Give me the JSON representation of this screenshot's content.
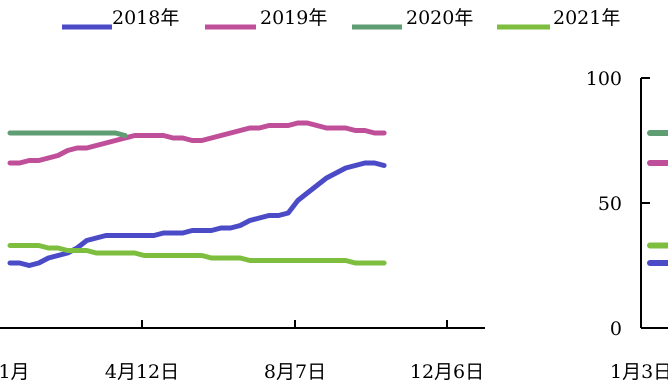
{
  "chart_data": [
    {
      "type": "line",
      "title": "",
      "legend": {
        "position": "top",
        "items": [
          {
            "label": "2018年",
            "color": "#4B4BC8"
          },
          {
            "label": "2019年",
            "color": "#C04F9A"
          },
          {
            "label": "2020年",
            "color": "#5E9E72"
          },
          {
            "label": "2021年",
            "color": "#7DBE3F"
          }
        ]
      },
      "x_ticks": [
        "1月",
        "4月12日",
        "8月7日",
        "12月6日"
      ],
      "ylim": [
        0,
        100
      ],
      "grid": false,
      "x": [
        0,
        1,
        2,
        3,
        4,
        5,
        6,
        7,
        8,
        9,
        10,
        11,
        12,
        13,
        14,
        15,
        16,
        17,
        18,
        19,
        20,
        21,
        22,
        23,
        24,
        25,
        26,
        27,
        28,
        29,
        30,
        31,
        32,
        33,
        34,
        35,
        36,
        37,
        38,
        39,
        40,
        41,
        42,
        43,
        44,
        45,
        46,
        47,
        48,
        49
      ],
      "series": [
        {
          "name": "2018年",
          "color": "#4B4BC8",
          "values": [
            26,
            26,
            25,
            26,
            28,
            29,
            30,
            32,
            35,
            36,
            37,
            37,
            37,
            37,
            37,
            37,
            38,
            38,
            38,
            39,
            39,
            39,
            40,
            40,
            41,
            43,
            44,
            45,
            45,
            46,
            51,
            54,
            57,
            60,
            62,
            64,
            65,
            66,
            66,
            65,
            null,
            null,
            null,
            null,
            null,
            null,
            null,
            null,
            null,
            null
          ]
        },
        {
          "name": "2019年",
          "color": "#C04F9A",
          "values": [
            66,
            66,
            67,
            67,
            68,
            69,
            71,
            72,
            72,
            73,
            74,
            75,
            76,
            77,
            77,
            77,
            77,
            76,
            76,
            75,
            75,
            76,
            77,
            78,
            79,
            80,
            80,
            81,
            81,
            81,
            82,
            82,
            81,
            80,
            80,
            80,
            79,
            79,
            78,
            78,
            null,
            null,
            null,
            null,
            null,
            null,
            null,
            null,
            null,
            null
          ]
        },
        {
          "name": "2020年",
          "color": "#5E9E72",
          "values": [
            78,
            78,
            78,
            78,
            78,
            78,
            78,
            78,
            78,
            78,
            78,
            78,
            77,
            null,
            null,
            null,
            null,
            null,
            null,
            null,
            null,
            null,
            null,
            null,
            null,
            null,
            null,
            null,
            null,
            null,
            null,
            null,
            null,
            null,
            null,
            null,
            null,
            null,
            null,
            null,
            null,
            null,
            null,
            null,
            null,
            null,
            null,
            null,
            null,
            null
          ]
        },
        {
          "name": "2021年",
          "color": "#7DBE3F",
          "values": [
            33,
            33,
            33,
            33,
            32,
            32,
            31,
            31,
            31,
            30,
            30,
            30,
            30,
            30,
            29,
            29,
            29,
            29,
            29,
            29,
            29,
            28,
            28,
            28,
            28,
            27,
            27,
            27,
            27,
            27,
            27,
            27,
            27,
            27,
            27,
            27,
            26,
            26,
            26,
            26,
            null,
            null,
            null,
            null,
            null,
            null,
            null,
            null,
            null,
            null
          ]
        }
      ]
    },
    {
      "type": "line",
      "title": "",
      "y_ticks": [
        "100",
        "50",
        "0"
      ],
      "x_ticks": [
        "1月3日"
      ],
      "ylim": [
        0,
        100
      ],
      "grid": false,
      "series": [
        {
          "name": "2018年",
          "color": "#4B4BC8",
          "values": [
            26
          ]
        },
        {
          "name": "2019年",
          "color": "#C04F9A",
          "values": [
            66
          ]
        },
        {
          "name": "2020年",
          "color": "#5E9E72",
          "values": [
            78
          ]
        },
        {
          "name": "2021年",
          "color": "#7DBE3F",
          "values": [
            33
          ]
        }
      ]
    }
  ]
}
